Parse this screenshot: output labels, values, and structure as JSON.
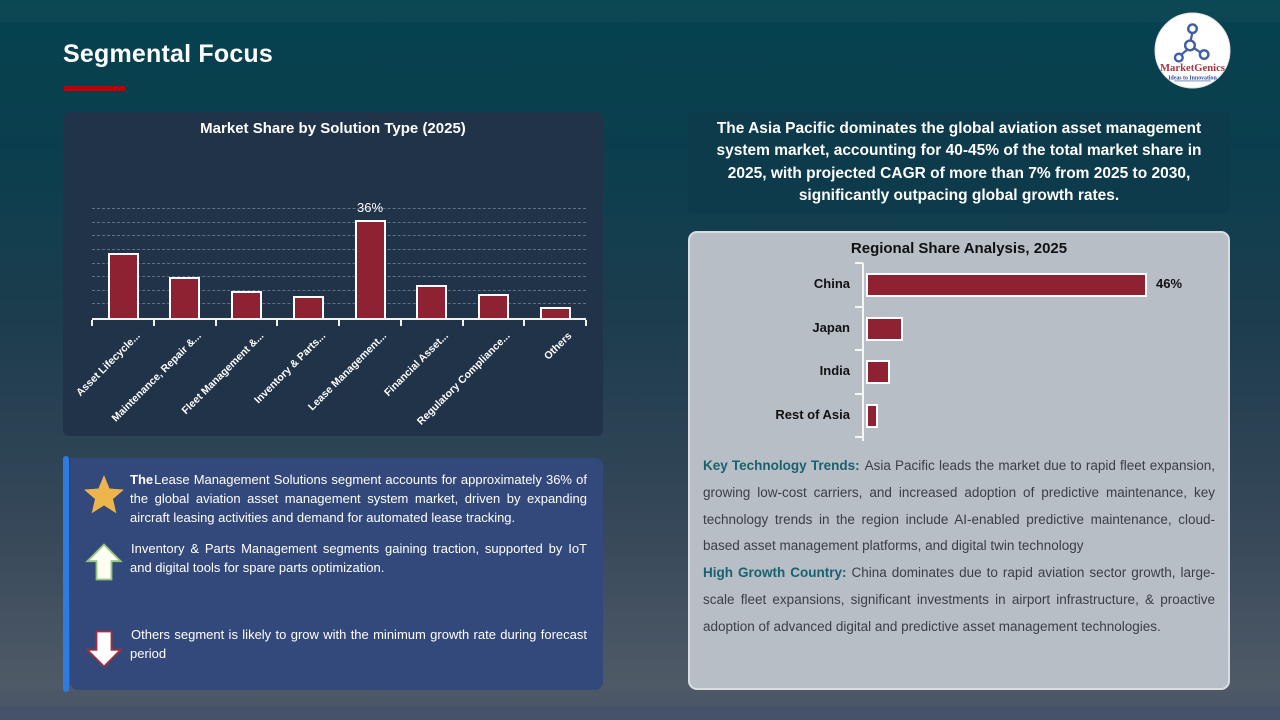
{
  "slide": {
    "title": "Segmental Focus",
    "logo": {
      "brand": "MarketGenics",
      "tagline": "Ideas to Innovation"
    }
  },
  "chart_data": [
    {
      "type": "bar",
      "title": "Market Share by Solution Type (2025)",
      "categories": [
        "Asset Lifecycle...",
        "Maintenance, Repair &...",
        "Fleet Management &...",
        "Inventory & Parts...",
        "Lease Management...",
        "Financial Asset...",
        "Regulatory Compliance...",
        "Others"
      ],
      "values": [
        24,
        15,
        10,
        8,
        36,
        12,
        9,
        4
      ],
      "data_labels": [
        "",
        "",
        "",
        "",
        "36%",
        "",
        "",
        ""
      ],
      "xlabel": "",
      "ylabel": "",
      "ylim": [
        0,
        42
      ],
      "grid": "horizontal dashed lines at 5% steps",
      "legend": "none",
      "note": "Only the Lease Management bar carries a printed label (36%); remaining values estimated from bar heights."
    },
    {
      "type": "bar-horizontal",
      "title": "Regional Share Analysis, 2025",
      "categories": [
        "China",
        "Japan",
        "India",
        "Rest of Asia"
      ],
      "values": [
        46,
        6,
        4,
        2
      ],
      "data_labels": [
        "46%",
        "",
        "",
        ""
      ],
      "xlabel": "",
      "ylabel": "",
      "grid": "off",
      "legend": "none",
      "note": "Only the China bar carries a printed label (46%); remaining values estimated from bar lengths."
    }
  ],
  "callout": {
    "text": "The Asia Pacific dominates the global aviation asset management system market, accounting for 40-45% of the total market share in 2025, with projected CAGR of more than 7% from 2025 to 2030, significantly outpacing global growth rates."
  },
  "insights": [
    {
      "icon": "star-icon",
      "lead": "The",
      "text": "Lease Management Solutions segment accounts for approximately 36% of the global aviation asset management system market, driven by expanding aircraft leasing activities and demand for automated lease tracking."
    },
    {
      "icon": "arrow-up-icon",
      "lead": "",
      "text": "Inventory & Parts Management segments gaining traction, supported by IoT and digital tools for spare parts optimization."
    },
    {
      "icon": "arrow-down-icon",
      "lead": "",
      "text": "Others segment is likely to grow with the minimum growth rate during forecast period"
    }
  ],
  "regional_notes": [
    {
      "lead": "Key Technology Trends:",
      "text": "Asia Pacific leads the market due to rapid fleet expansion, growing low-cost carriers, and increased adoption of predictive maintenance, key technology trends in the region include AI-enabled predictive maintenance, cloud-based asset management platforms, and digital twin technology"
    },
    {
      "lead": "High Growth Country:",
      "text": "China dominates due to rapid aviation sector growth, large-scale fleet expansions, significant investments in airport infrastructure, & proactive adoption of advanced digital and predictive asset management technologies."
    }
  ],
  "colors": {
    "accent_red": "#C00000",
    "bar_maroon": "#8E2232",
    "chart_panel_navy": "#203349",
    "insight_panel_blue": "#33497B",
    "insight_accent_blue": "#2F7BE0",
    "callout_teal": "#0D3B4B",
    "gray_panel": "#B7BEC5",
    "lead_teal": "#1A6170",
    "star_gold": "#EFB54D"
  }
}
